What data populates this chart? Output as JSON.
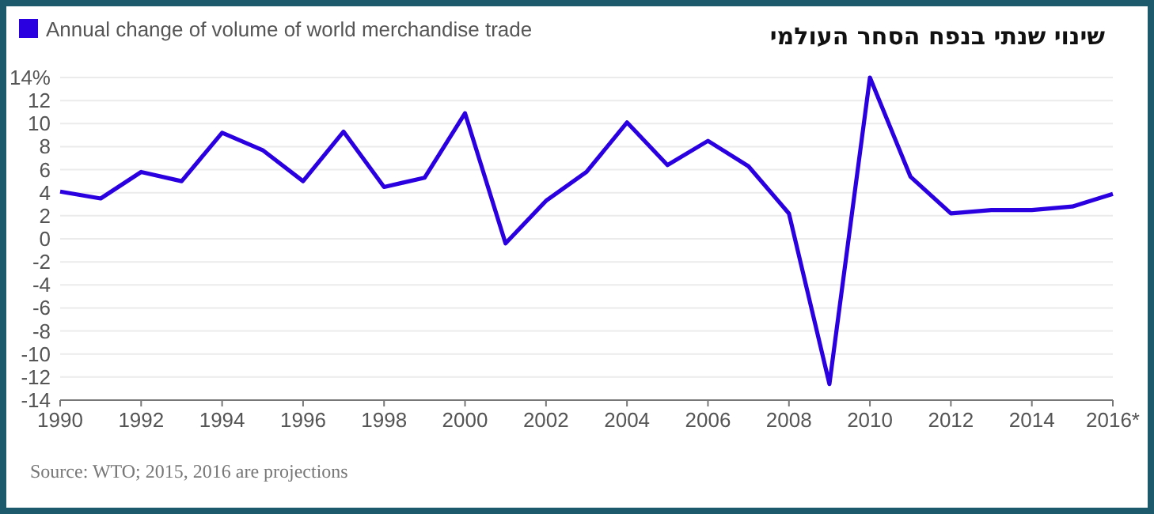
{
  "chart_data": {
    "type": "line",
    "title": "שינוי שנתי בנפח הסחר העולמי",
    "x": [
      1990,
      1991,
      1992,
      1993,
      1994,
      1995,
      1996,
      1997,
      1998,
      1999,
      2000,
      2001,
      2002,
      2003,
      2004,
      2005,
      2006,
      2007,
      2008,
      2009,
      2010,
      2011,
      2012,
      2013,
      2014,
      2015,
      2016
    ],
    "series": [
      {
        "name": "Annual change of volume of world merchandise trade",
        "color": "#2a00e0",
        "values": [
          4.1,
          3.5,
          5.8,
          5.0,
          9.2,
          7.7,
          5.0,
          9.3,
          4.5,
          5.3,
          10.9,
          -0.4,
          3.3,
          5.8,
          10.1,
          6.4,
          8.5,
          6.3,
          2.2,
          -12.6,
          14.0,
          5.4,
          2.2,
          2.5,
          2.5,
          2.8,
          3.9
        ]
      }
    ],
    "xlim": [
      1990,
      2016
    ],
    "xticks": [
      1990,
      1992,
      1994,
      1996,
      1998,
      2000,
      2002,
      2004,
      2006,
      2008,
      2010,
      2012,
      2014,
      {
        "value": 2016,
        "label": "2016*"
      }
    ],
    "ylim": [
      -14,
      14
    ],
    "yticks": [
      -14,
      -12,
      -10,
      -8,
      -6,
      -4,
      -2,
      0,
      2,
      4,
      6,
      8,
      10,
      12,
      {
        "value": 14,
        "label": "14%"
      }
    ],
    "grid": "y",
    "legend": "top left",
    "marker": "none",
    "line_style": "solid",
    "annotations": [
      "Source: WTO; 2015, 2016 are projections"
    ]
  }
}
